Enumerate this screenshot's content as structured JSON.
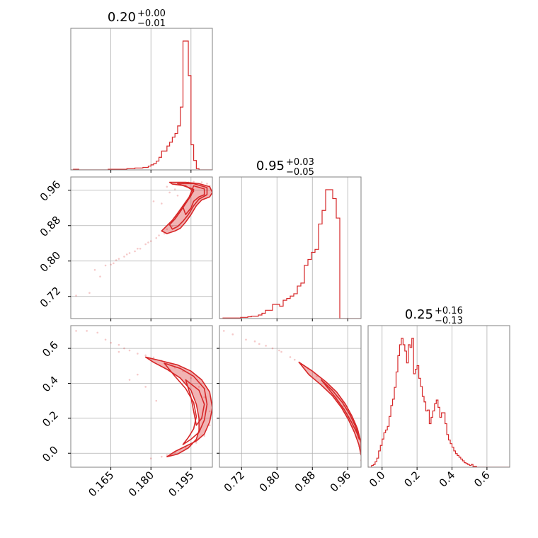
{
  "chart_data": {
    "type": "corner",
    "color": "#d62728",
    "grid": true,
    "axes": {
      "p0": {
        "lim": [
          0.15,
          0.203
        ],
        "ticks": [
          0.165,
          0.18,
          0.195
        ],
        "tick_labels": [
          "0.165",
          "0.180",
          "0.195"
        ]
      },
      "p1": {
        "lim": [
          0.67,
          0.99
        ],
        "ticks": [
          0.72,
          0.8,
          0.88,
          0.96
        ],
        "tick_labels": [
          "0.72",
          "0.80",
          "0.88",
          "0.96"
        ]
      },
      "p2": {
        "lim": [
          -0.08,
          0.73
        ],
        "ticks": [
          0.0,
          0.2,
          0.4,
          0.6
        ],
        "tick_labels": [
          "0.0",
          "0.2",
          "0.4",
          "0.6"
        ]
      }
    },
    "titles": [
      {
        "value": "0.20",
        "plus": "+0.00",
        "minus": "−0.01"
      },
      {
        "value": "0.95",
        "plus": "+0.03",
        "minus": "−0.05"
      },
      {
        "value": "0.25",
        "plus": "+0.16",
        "minus": "−0.13"
      }
    ],
    "hist_p0": {
      "bin_start": 0.15,
      "bin_width": 0.001,
      "counts": [
        0,
        1,
        1,
        0,
        0,
        0,
        0,
        0,
        0,
        0,
        0,
        0,
        0,
        0,
        1,
        1,
        1,
        1,
        1,
        1,
        1,
        2,
        2,
        2,
        3,
        3,
        3,
        4,
        4,
        6,
        8,
        10,
        14,
        20,
        30,
        30,
        38,
        44,
        52,
        58,
        70,
        100,
        205,
        205,
        150,
        40,
        15,
        2,
        0,
        0,
        0,
        0,
        0
      ]
    },
    "hist_p1": {
      "bin_start": 0.67,
      "bin_width": 0.008,
      "counts": [
        0,
        1,
        1,
        1,
        1,
        1,
        2,
        2,
        3,
        4,
        4,
        6,
        9,
        14,
        14,
        24,
        24,
        21,
        31,
        34,
        38,
        42,
        55,
        60,
        90,
        100,
        112,
        117,
        160,
        183,
        218,
        218,
        203,
        170,
        0,
        0,
        0,
        0,
        0,
        0
      ]
    },
    "hist_p2": {
      "bin_start": -0.08,
      "bin_width": 0.01,
      "counts": [
        0,
        0,
        2,
        3,
        6,
        10,
        18,
        24,
        31,
        38,
        41,
        45,
        56,
        68,
        75,
        88,
        105,
        123,
        135,
        142,
        135,
        128,
        115,
        135,
        132,
        142,
        103,
        108,
        112,
        98,
        89,
        78,
        72,
        62,
        63,
        48,
        55,
        62,
        70,
        74,
        66,
        55,
        60,
        60,
        48,
        36,
        30,
        26,
        22,
        18,
        15,
        13,
        11,
        9,
        7,
        5,
        4,
        3,
        2,
        3,
        1,
        1,
        0,
        0,
        0,
        0,
        0,
        0,
        0,
        0,
        0,
        0,
        0,
        0,
        0,
        0,
        0,
        0,
        0,
        0,
        0
      ]
    },
    "scatter_p0_p1": [
      [
        0.152,
        0.722
      ],
      [
        0.157,
        0.728
      ],
      [
        0.159,
        0.78
      ],
      [
        0.161,
        0.765
      ],
      [
        0.163,
        0.79
      ],
      [
        0.165,
        0.792
      ],
      [
        0.166,
        0.795
      ],
      [
        0.168,
        0.805
      ],
      [
        0.17,
        0.81
      ],
      [
        0.172,
        0.818
      ],
      [
        0.174,
        0.822
      ],
      [
        0.176,
        0.828
      ],
      [
        0.178,
        0.838
      ],
      [
        0.18,
        0.845
      ],
      [
        0.182,
        0.852
      ],
      [
        0.183,
        0.858
      ],
      [
        0.185,
        0.862
      ],
      [
        0.186,
        0.872
      ],
      [
        0.188,
        0.878
      ],
      [
        0.187,
        0.955
      ],
      [
        0.189,
        0.962
      ],
      [
        0.19,
        0.948
      ],
      [
        0.192,
        0.975
      ],
      [
        0.194,
        0.978
      ],
      [
        0.196,
        0.979
      ],
      [
        0.199,
        0.978
      ],
      [
        0.201,
        0.975
      ],
      [
        0.202,
        0.97
      ],
      [
        0.186,
        0.968
      ],
      [
        0.184,
        0.93
      ],
      [
        0.181,
        0.935
      ],
      [
        0.179,
        0.842
      ],
      [
        0.175,
        0.828
      ],
      [
        0.171,
        0.815
      ],
      [
        0.167,
        0.802
      ]
    ],
    "scatter_p0_p2": [
      [
        0.152,
        0.7
      ],
      [
        0.156,
        0.7
      ],
      [
        0.16,
        0.69
      ],
      [
        0.163,
        0.65
      ],
      [
        0.165,
        0.632
      ],
      [
        0.168,
        0.62
      ],
      [
        0.17,
        0.6
      ],
      [
        0.172,
        0.588
      ],
      [
        0.175,
        0.57
      ],
      [
        0.178,
        0.56
      ],
      [
        0.181,
        0.548
      ],
      [
        0.184,
        0.53
      ],
      [
        0.186,
        0.512
      ],
      [
        0.189,
        0.49
      ],
      [
        0.192,
        0.47
      ],
      [
        0.195,
        0.43
      ],
      [
        0.198,
        0.38
      ],
      [
        0.2,
        0.32
      ],
      [
        0.202,
        0.24
      ],
      [
        0.202,
        0.16
      ],
      [
        0.2,
        0.1
      ],
      [
        0.197,
        0.06
      ],
      [
        0.193,
        0.03
      ],
      [
        0.189,
        0.005
      ],
      [
        0.186,
        -0.01
      ],
      [
        0.184,
        -0.02
      ],
      [
        0.18,
        -0.03
      ],
      [
        0.175,
        0.45
      ],
      [
        0.172,
        0.42
      ],
      [
        0.178,
        0.38
      ],
      [
        0.182,
        0.3
      ],
      [
        0.168,
        0.58
      ]
    ],
    "scatter_p1_p2": [
      [
        0.68,
        0.7
      ],
      [
        0.7,
        0.68
      ],
      [
        0.73,
        0.65
      ],
      [
        0.76,
        0.625
      ],
      [
        0.79,
        0.6
      ],
      [
        0.81,
        0.58
      ],
      [
        0.83,
        0.55
      ],
      [
        0.85,
        0.52
      ],
      [
        0.87,
        0.485
      ],
      [
        0.89,
        0.44
      ],
      [
        0.905,
        0.405
      ],
      [
        0.92,
        0.37
      ],
      [
        0.935,
        0.32
      ],
      [
        0.95,
        0.27
      ],
      [
        0.962,
        0.21
      ],
      [
        0.972,
        0.15
      ],
      [
        0.98,
        0.09
      ],
      [
        0.986,
        0.04
      ],
      [
        0.99,
        0.0
      ],
      [
        0.99,
        -0.04
      ],
      [
        0.75,
        0.64
      ],
      [
        0.775,
        0.615
      ],
      [
        0.805,
        0.588
      ],
      [
        0.84,
        0.535
      ]
    ],
    "contours_p0_p1": [
      [
        [
          0.187,
          0.978
        ],
        [
          0.193,
          0.978
        ],
        [
          0.198,
          0.975
        ],
        [
          0.202,
          0.968
        ],
        [
          0.203,
          0.955
        ],
        [
          0.202,
          0.945
        ],
        [
          0.199,
          0.938
        ],
        [
          0.197,
          0.925
        ],
        [
          0.195,
          0.905
        ],
        [
          0.193,
          0.888
        ],
        [
          0.191,
          0.874
        ],
        [
          0.189,
          0.868
        ],
        [
          0.186,
          0.862
        ],
        [
          0.184,
          0.868
        ],
        [
          0.186,
          0.88
        ],
        [
          0.188,
          0.892
        ],
        [
          0.19,
          0.908
        ],
        [
          0.192,
          0.925
        ],
        [
          0.194,
          0.942
        ],
        [
          0.196,
          0.958
        ],
        [
          0.193,
          0.97
        ],
        [
          0.188,
          0.974
        ]
      ],
      [
        [
          0.19,
          0.975
        ],
        [
          0.196,
          0.975
        ],
        [
          0.201,
          0.966
        ],
        [
          0.201,
          0.95
        ],
        [
          0.198,
          0.94
        ],
        [
          0.196,
          0.925
        ],
        [
          0.194,
          0.905
        ],
        [
          0.192,
          0.89
        ],
        [
          0.19,
          0.878
        ],
        [
          0.188,
          0.872
        ],
        [
          0.187,
          0.882
        ],
        [
          0.189,
          0.895
        ],
        [
          0.191,
          0.912
        ],
        [
          0.193,
          0.93
        ],
        [
          0.195,
          0.948
        ],
        [
          0.196,
          0.962
        ]
      ],
      [
        [
          0.196,
          0.97
        ],
        [
          0.2,
          0.963
        ],
        [
          0.2,
          0.95
        ],
        [
          0.198,
          0.945
        ],
        [
          0.196,
          0.935
        ],
        [
          0.195,
          0.92
        ],
        [
          0.193,
          0.905
        ],
        [
          0.192,
          0.922
        ],
        [
          0.194,
          0.94
        ],
        [
          0.195,
          0.955
        ]
      ]
    ],
    "contours_p0_p2": [
      [
        [
          0.178,
          0.55
        ],
        [
          0.184,
          0.528
        ],
        [
          0.19,
          0.505
        ],
        [
          0.195,
          0.47
        ],
        [
          0.199,
          0.42
        ],
        [
          0.202,
          0.35
        ],
        [
          0.203,
          0.26
        ],
        [
          0.202,
          0.18
        ],
        [
          0.2,
          0.11
        ],
        [
          0.197,
          0.07
        ],
        [
          0.193,
          0.04
        ],
        [
          0.189,
          0.01
        ],
        [
          0.186,
          -0.02
        ],
        [
          0.19,
          -0.005
        ],
        [
          0.194,
          0.03
        ],
        [
          0.197,
          0.08
        ],
        [
          0.198,
          0.13
        ],
        [
          0.198,
          0.2
        ],
        [
          0.197,
          0.28
        ],
        [
          0.195,
          0.36
        ],
        [
          0.191,
          0.43
        ],
        [
          0.186,
          0.48
        ],
        [
          0.181,
          0.52
        ]
      ],
      [
        [
          0.185,
          0.515
        ],
        [
          0.191,
          0.485
        ],
        [
          0.196,
          0.44
        ],
        [
          0.2,
          0.37
        ],
        [
          0.201,
          0.28
        ],
        [
          0.2,
          0.19
        ],
        [
          0.198,
          0.12
        ],
        [
          0.195,
          0.08
        ],
        [
          0.192,
          0.05
        ],
        [
          0.194,
          0.09
        ],
        [
          0.196,
          0.14
        ],
        [
          0.197,
          0.21
        ],
        [
          0.196,
          0.29
        ],
        [
          0.193,
          0.37
        ],
        [
          0.189,
          0.44
        ]
      ],
      [
        [
          0.193,
          0.42
        ],
        [
          0.198,
          0.36
        ],
        [
          0.2,
          0.28
        ],
        [
          0.199,
          0.2
        ],
        [
          0.197,
          0.16
        ],
        [
          0.196,
          0.24
        ],
        [
          0.195,
          0.32
        ]
      ]
    ],
    "contours_p1_p2": [
      [
        [
          0.85,
          0.52
        ],
        [
          0.88,
          0.47
        ],
        [
          0.91,
          0.41
        ],
        [
          0.935,
          0.35
        ],
        [
          0.955,
          0.28
        ],
        [
          0.97,
          0.21
        ],
        [
          0.982,
          0.14
        ],
        [
          0.99,
          0.06
        ],
        [
          0.99,
          -0.01
        ],
        [
          0.985,
          0.05
        ],
        [
          0.975,
          0.12
        ],
        [
          0.962,
          0.19
        ],
        [
          0.946,
          0.26
        ],
        [
          0.925,
          0.33
        ],
        [
          0.9,
          0.39
        ],
        [
          0.872,
          0.45
        ]
      ],
      [
        [
          0.9,
          0.42
        ],
        [
          0.925,
          0.36
        ],
        [
          0.948,
          0.29
        ],
        [
          0.965,
          0.22
        ],
        [
          0.978,
          0.15
        ],
        [
          0.986,
          0.08
        ],
        [
          0.98,
          0.12
        ],
        [
          0.968,
          0.18
        ],
        [
          0.952,
          0.25
        ],
        [
          0.932,
          0.32
        ]
      ]
    ]
  }
}
